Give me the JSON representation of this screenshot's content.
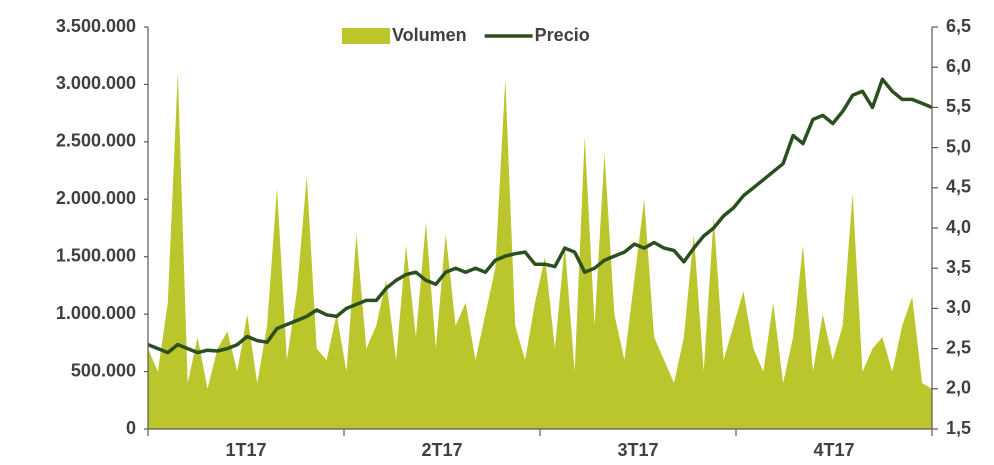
{
  "chart_data": {
    "type": "area-line",
    "x_labels": [
      "1T17",
      "2T17",
      "3T17",
      "4T17"
    ],
    "series": [
      {
        "name": "Volumen",
        "type": "area",
        "axis": "y",
        "color": "#bac62b",
        "values": [
          700000,
          500000,
          1100000,
          3100000,
          400000,
          800000,
          350000,
          700000,
          850000,
          500000,
          1000000,
          400000,
          900000,
          2100000,
          600000,
          1200000,
          2200000,
          700000,
          600000,
          1000000,
          500000,
          1700000,
          700000,
          900000,
          1300000,
          600000,
          1600000,
          800000,
          1800000,
          700000,
          1700000,
          900000,
          1100000,
          600000,
          1000000,
          1400000,
          3050000,
          900000,
          600000,
          1100000,
          1500000,
          700000,
          1600000,
          500000,
          2550000,
          900000,
          2400000,
          1000000,
          600000,
          1300000,
          2000000,
          800000,
          600000,
          400000,
          800000,
          1700000,
          500000,
          1850000,
          600000,
          900000,
          1200000,
          700000,
          500000,
          1100000,
          400000,
          800000,
          1600000,
          500000,
          1000000,
          600000,
          900000,
          2050000,
          500000,
          700000,
          800000,
          500000,
          900000,
          1150000,
          400000,
          350000
        ]
      },
      {
        "name": "Precio",
        "type": "line",
        "axis": "y2",
        "color": "#2b4f1f",
        "values": [
          2.55,
          2.5,
          2.45,
          2.55,
          2.5,
          2.45,
          2.48,
          2.47,
          2.5,
          2.55,
          2.65,
          2.6,
          2.58,
          2.75,
          2.8,
          2.85,
          2.9,
          2.98,
          2.92,
          2.9,
          3.0,
          3.05,
          3.1,
          3.1,
          3.25,
          3.35,
          3.42,
          3.45,
          3.35,
          3.3,
          3.45,
          3.5,
          3.45,
          3.5,
          3.45,
          3.6,
          3.65,
          3.68,
          3.7,
          3.55,
          3.55,
          3.52,
          3.75,
          3.7,
          3.45,
          3.5,
          3.6,
          3.65,
          3.7,
          3.8,
          3.75,
          3.82,
          3.75,
          3.72,
          3.58,
          3.75,
          3.9,
          4.0,
          4.15,
          4.25,
          4.4,
          4.5,
          4.6,
          4.7,
          4.8,
          5.15,
          5.05,
          5.35,
          5.4,
          5.3,
          5.45,
          5.65,
          5.7,
          5.5,
          5.85,
          5.7,
          5.6,
          5.6,
          5.55,
          5.5
        ]
      }
    ],
    "ylim": [
      0,
      3500000
    ],
    "yticks": [
      0,
      {
        "value": 500000,
        "label": "500.000"
      },
      {
        "value": 1000000,
        "label": "1.000.000"
      },
      {
        "value": 1500000,
        "label": "1.500.000"
      },
      {
        "value": 2000000,
        "label": "2.000.000"
      },
      {
        "value": 2500000,
        "label": "2.500.000"
      },
      {
        "value": 3000000,
        "label": "3.000.000"
      },
      {
        "value": 3500000,
        "label": "3.500.000"
      }
    ],
    "y2lim": [
      1.5,
      6.5
    ],
    "y2ticks": [
      {
        "value": 1.5,
        "label": "1,5"
      },
      {
        "value": 2,
        "label": "2,0"
      },
      {
        "value": 2.5,
        "label": "2,5"
      },
      {
        "value": 3,
        "label": "3,0"
      },
      {
        "value": 3.5,
        "label": "3,5"
      },
      {
        "value": 4,
        "label": "4,0"
      },
      {
        "value": 4.5,
        "label": "4,5"
      },
      {
        "value": 5,
        "label": "5,0"
      },
      {
        "value": 5.5,
        "label": "5,5"
      },
      {
        "value": 6,
        "label": "6,0"
      },
      {
        "value": 6.5,
        "label": "6,5"
      }
    ],
    "legend": "top"
  }
}
